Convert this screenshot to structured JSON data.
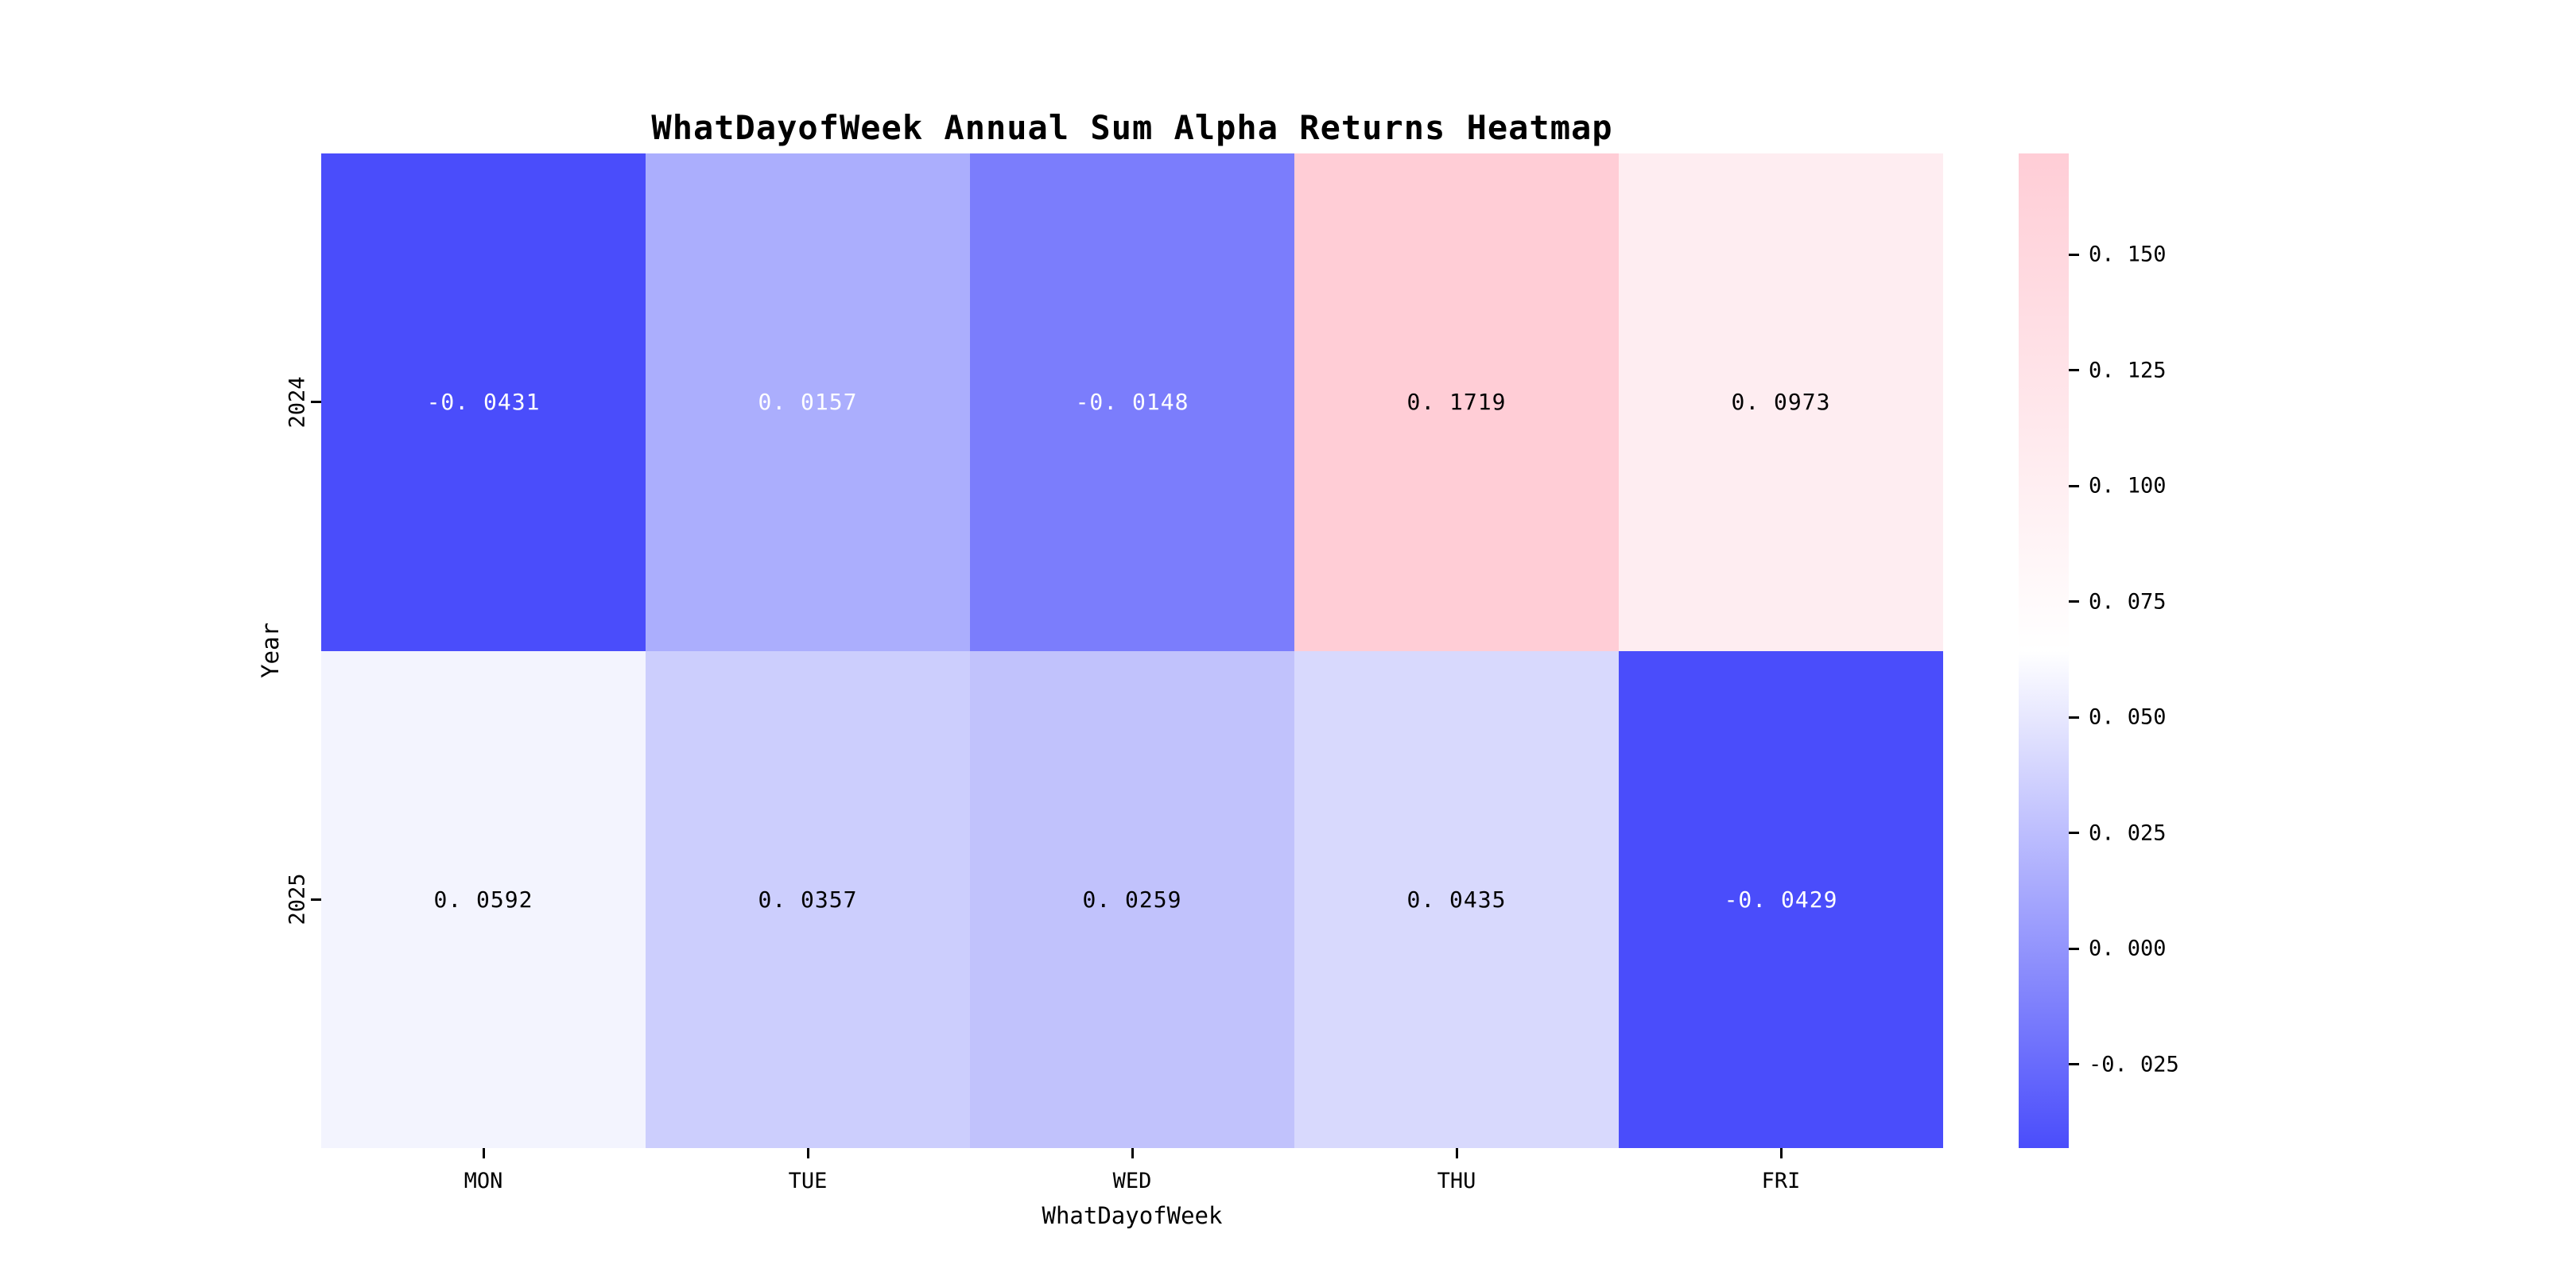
{
  "figure": {
    "background": "#ffffff",
    "kind": "matplotlib-seaborn-heatmap-figure"
  },
  "chart_data": {
    "type": "heatmap",
    "title": "WhatDayofWeek Annual Sum Alpha Returns Heatmap",
    "xlabel": "WhatDayofWeek",
    "ylabel": "Year",
    "x_categories": [
      "MON",
      "TUE",
      "WED",
      "THU",
      "FRI"
    ],
    "y_categories": [
      "2024",
      "2025"
    ],
    "values": [
      [
        -0.0431,
        0.0157,
        -0.0148,
        0.1719,
        0.0973
      ],
      [
        0.0592,
        0.0357,
        0.0259,
        0.0435,
        -0.0429
      ]
    ],
    "vmin": -0.0431,
    "vmax": 0.1719,
    "grid": false,
    "legend_position": "right-colorbar",
    "colormap": {
      "low": "#4A4DFB",
      "mid": "#FFFFFF",
      "high": "#FFCDD6"
    },
    "colorbar_tick_values": [
      0.15,
      0.125,
      0.1,
      0.075,
      0.05,
      0.025,
      0.0,
      -0.025
    ]
  },
  "heatmap": {
    "x_tick_labels": [
      "MON",
      "TUE",
      "WED",
      "THU",
      "FRI"
    ],
    "rows": [
      {
        "year_label": "2024",
        "cells": [
          {
            "display": "-0. 0431",
            "value": -0.0431,
            "bg": "#4A4DFB",
            "fg": "#FFFFFF"
          },
          {
            "display": "0. 0157",
            "value": 0.0157,
            "bg": "#ABAEFD",
            "fg": "#FFFFFF"
          },
          {
            "display": "-0. 0148",
            "value": -0.0148,
            "bg": "#7B7DFC",
            "fg": "#FFFFFF"
          },
          {
            "display": "0. 1719",
            "value": 0.1719,
            "bg": "#FFCDD6",
            "fg": "#000000"
          },
          {
            "display": "0. 0973",
            "value": 0.0973,
            "bg": "#FEEDF1",
            "fg": "#000000"
          }
        ]
      },
      {
        "year_label": "2025",
        "cells": [
          {
            "display": "0. 0592",
            "value": 0.0592,
            "bg": "#F3F4FE",
            "fg": "#000000"
          },
          {
            "display": "0. 0357",
            "value": 0.0357,
            "bg": "#CCCEFD",
            "fg": "#000000"
          },
          {
            "display": "0. 0259",
            "value": 0.0259,
            "bg": "#C1C2FC",
            "fg": "#000000"
          },
          {
            "display": "0. 0435",
            "value": 0.0435,
            "bg": "#D8D9FD",
            "fg": "#000000"
          },
          {
            "display": "-0. 0429",
            "value": -0.0429,
            "bg": "#4A4DFB",
            "fg": "#FFFFFF"
          }
        ]
      }
    ]
  },
  "colorbar": {
    "ticks": [
      {
        "display": "0. 150",
        "value": 0.15
      },
      {
        "display": "0. 125",
        "value": 0.125
      },
      {
        "display": "0. 100",
        "value": 0.1
      },
      {
        "display": "0. 075",
        "value": 0.075
      },
      {
        "display": "0. 050",
        "value": 0.05
      },
      {
        "display": "0. 025",
        "value": 0.025
      },
      {
        "display": "0. 000",
        "value": 0.0
      },
      {
        "display": "-0. 025",
        "value": -0.025
      }
    ]
  }
}
